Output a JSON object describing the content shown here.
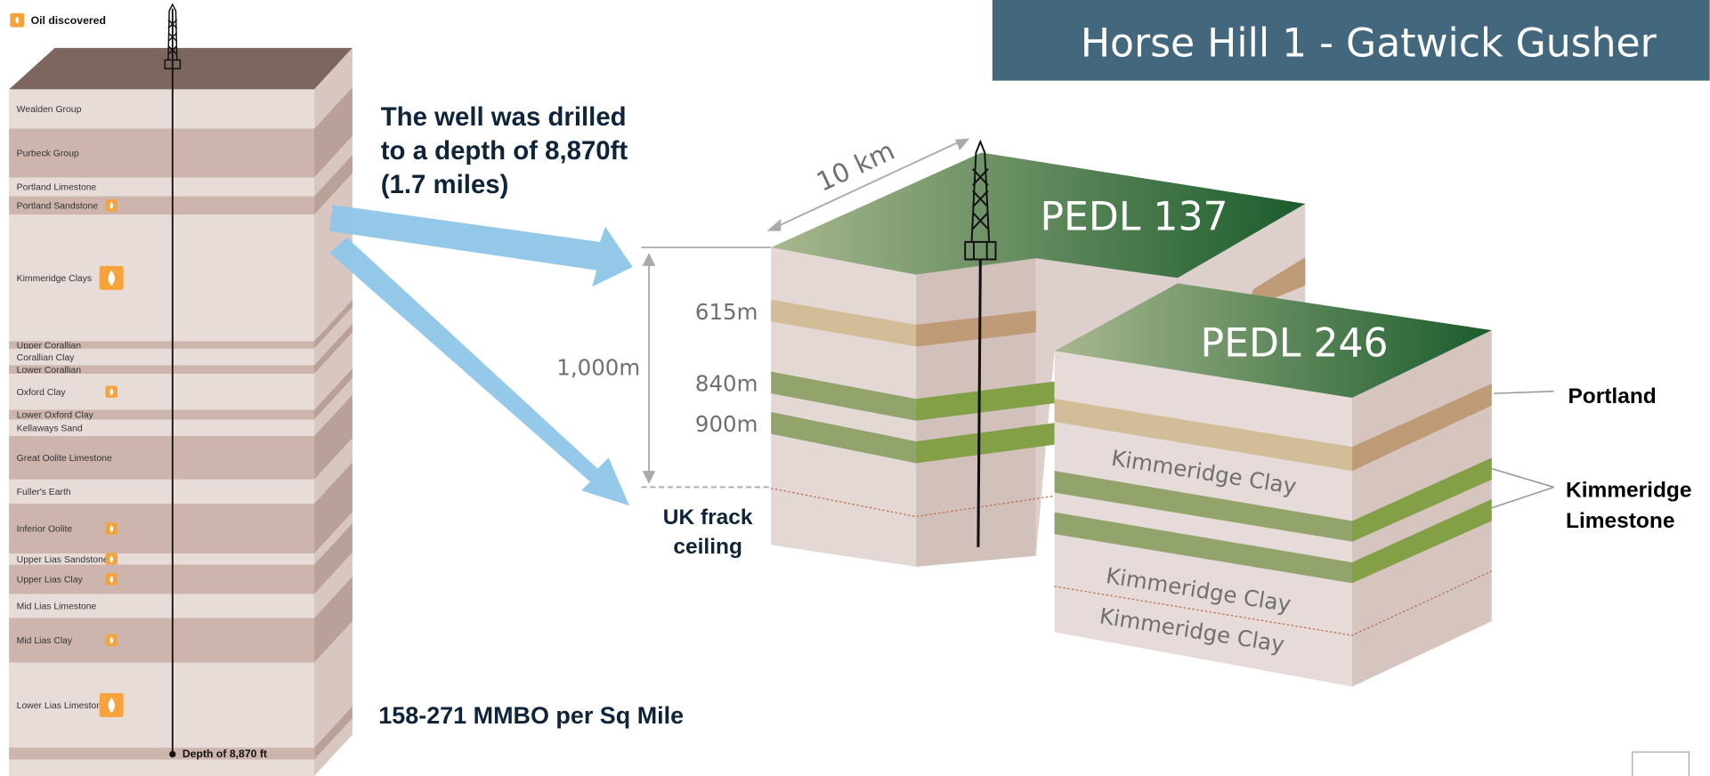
{
  "header": {
    "title": "Horse Hill 1 - Gatwick Gusher"
  },
  "legend": {
    "label": "Oil discovered"
  },
  "strata": [
    {
      "name": "Wealden Group",
      "oil": false
    },
    {
      "name": "Purbeck Group",
      "oil": false
    },
    {
      "name": "Portland Limestone",
      "oil": false
    },
    {
      "name": "Portland Sandstone",
      "oil": true
    },
    {
      "name": "Kimmeridge Clays",
      "oil": true
    },
    {
      "name": "Upper Corallian",
      "oil": false
    },
    {
      "name": "Corallian Clay",
      "oil": false
    },
    {
      "name": "Lower Corallian",
      "oil": false
    },
    {
      "name": "Oxford Clay",
      "oil": true
    },
    {
      "name": "Lower Oxford Clay",
      "oil": false
    },
    {
      "name": "Kellaways Sand",
      "oil": false
    },
    {
      "name": "Great Oolite Limestone",
      "oil": false
    },
    {
      "name": "Fuller's Earth",
      "oil": false
    },
    {
      "name": "Inferior Oolite",
      "oil": true
    },
    {
      "name": "Upper Lias Sandstone",
      "oil": true
    },
    {
      "name": "Upper Lias Clay",
      "oil": true
    },
    {
      "name": "Mid Lias Limestone",
      "oil": false
    },
    {
      "name": "Mid Lias Clay",
      "oil": true
    },
    {
      "name": "Lower Lias Limestone",
      "oil": true
    }
  ],
  "well": {
    "depth_label": "Depth of 8,870 ft"
  },
  "callouts": {
    "depth_lines": [
      "The well was drilled",
      "to a depth of 8,870ft",
      "(1.7 miles)"
    ],
    "production": "158-271 MMBO per Sq Mile"
  },
  "block": {
    "width_label": "10 km",
    "licences": [
      "PEDL 137",
      "PEDL 246"
    ],
    "depth_markers": [
      "615m",
      "840m",
      "900m"
    ],
    "span_label": "1,000m",
    "frack_ceiling": [
      "UK frack",
      "ceiling"
    ],
    "portland": "Portland",
    "kimmeridge_limestone": [
      "Kimmeridge",
      "Limestone"
    ],
    "clay_labels": [
      "Kimmeridge Clay",
      "Kimmeridge Clay",
      "Kimmeridge Clay"
    ]
  }
}
